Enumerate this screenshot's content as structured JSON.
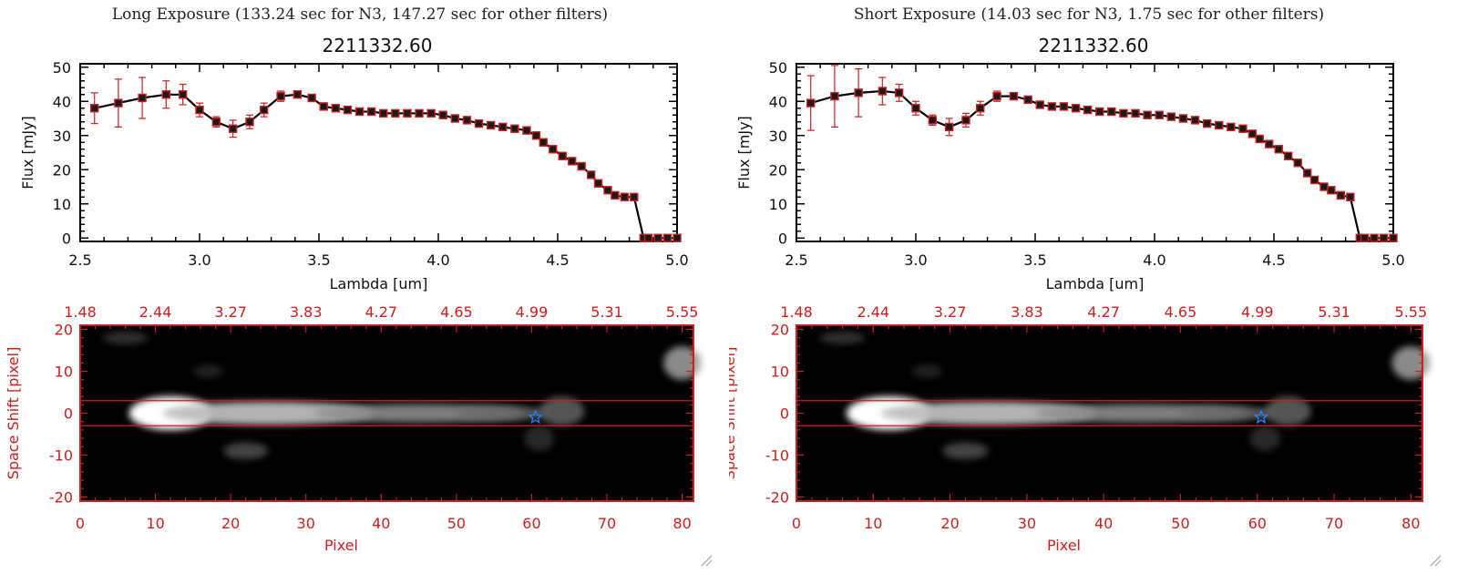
{
  "panels": [
    {
      "caption": "Long Exposure (133.24 sec for N3, 147.27 sec for other filters)",
      "title": "2211332.60",
      "spectrum": {
        "xlabel": "Lambda [um]",
        "ylabel": "Flux [mJy]",
        "xticks": [
          "2.5",
          "3.0",
          "3.5",
          "4.0",
          "4.5",
          "5.0"
        ],
        "yticks": [
          "0",
          "10",
          "20",
          "30",
          "40",
          "50"
        ],
        "xlim": [
          2.5,
          5.0
        ],
        "ylim": [
          -1,
          51
        ]
      },
      "image": {
        "xlabel": "Pixel",
        "ylabel": "Space Shift [pixel]",
        "xticks": [
          "0",
          "10",
          "20",
          "30",
          "40",
          "50",
          "60",
          "70",
          "80"
        ],
        "yticks": [
          "20",
          "10",
          "0",
          "-10",
          "-20"
        ],
        "top_ticks": [
          "1.48",
          "2.44",
          "3.27",
          "3.83",
          "4.27",
          "4.65",
          "4.99",
          "5.31",
          "5.55"
        ]
      }
    },
    {
      "caption": "Short Exposure (14.03 sec for N3, 1.75 sec for other filters)",
      "title": "2211332.60",
      "spectrum": {
        "xlabel": "Lambda [um]",
        "ylabel": "Flux [mJy]",
        "xticks": [
          "2.5",
          "3.0",
          "3.5",
          "4.0",
          "4.5",
          "5.0"
        ],
        "yticks": [
          "0",
          "10",
          "20",
          "30",
          "40",
          "50"
        ],
        "xlim": [
          2.5,
          5.0
        ],
        "ylim": [
          -1,
          51
        ]
      },
      "image": {
        "xlabel": "Pixel",
        "ylabel": "Space Shift [pixel]",
        "xticks": [
          "0",
          "10",
          "20",
          "30",
          "40",
          "50",
          "60",
          "70",
          "80"
        ],
        "yticks": [
          "20",
          "10",
          "0",
          "-10",
          "-20"
        ],
        "top_ticks": [
          "1.48",
          "2.44",
          "3.27",
          "3.83",
          "4.27",
          "4.65",
          "4.99",
          "5.31",
          "5.55"
        ]
      }
    }
  ],
  "colors": {
    "axis_red": "#cc1f1f",
    "marker_red": "#cc1f1f",
    "line": "#000000",
    "star": "#2a7fff"
  },
  "chart_data": [
    {
      "type": "line",
      "title": "2211332.60",
      "xlabel": "Lambda [um]",
      "ylabel": "Flux [mJy]",
      "xlim": [
        2.5,
        5.0
      ],
      "ylim": [
        -1,
        51
      ],
      "series": [
        {
          "x": [
            2.56,
            2.66,
            2.76,
            2.86,
            2.93,
            3.0,
            3.07,
            3.14,
            3.21,
            3.27,
            3.34,
            3.41,
            3.47,
            3.52,
            3.57,
            3.62,
            3.67,
            3.72,
            3.77,
            3.82,
            3.87,
            3.92,
            3.97,
            4.02,
            4.07,
            4.12,
            4.17,
            4.22,
            4.27,
            4.32,
            4.37,
            4.41,
            4.44,
            4.48,
            4.52,
            4.56,
            4.6,
            4.64,
            4.67,
            4.71,
            4.74,
            4.78,
            4.82,
            4.86,
            4.88,
            4.92,
            4.96,
            5.0
          ],
          "y": [
            38,
            39.5,
            41,
            42,
            42,
            37.5,
            34,
            32,
            34,
            37.5,
            41.5,
            42,
            41,
            38.5,
            38,
            37.5,
            37,
            37,
            36.5,
            36.5,
            36.5,
            36.5,
            36.5,
            36,
            35,
            34.5,
            33.5,
            33,
            32.5,
            32,
            31.5,
            30,
            28,
            26,
            24,
            22.5,
            21,
            18.5,
            16,
            14,
            12.5,
            12,
            12,
            0,
            0,
            0,
            0,
            0
          ],
          "yerr": [
            4.5,
            7,
            6,
            4,
            3,
            2,
            1.5,
            2.5,
            2,
            2,
            1.5,
            1,
            1,
            1,
            0.8,
            0.8,
            0.8,
            0.8,
            0.8,
            0.8,
            0.8,
            0.8,
            0.8,
            0.8,
            0.8,
            0.8,
            0.8,
            0.8,
            0.8,
            0.8,
            0.8,
            0.8,
            0.8,
            0.8,
            0.8,
            0.8,
            0.8,
            0.8,
            0.8,
            0.8,
            0.8,
            0.8,
            0.8,
            0.5,
            0.5,
            0.5,
            0.5,
            0.5
          ]
        }
      ]
    },
    {
      "type": "line",
      "title": "2211332.60",
      "xlabel": "Lambda [um]",
      "ylabel": "Flux [mJy]",
      "xlim": [
        2.5,
        5.0
      ],
      "ylim": [
        -1,
        51
      ],
      "series": [
        {
          "x": [
            2.56,
            2.66,
            2.76,
            2.86,
            2.93,
            3.0,
            3.07,
            3.14,
            3.21,
            3.27,
            3.34,
            3.41,
            3.47,
            3.52,
            3.57,
            3.62,
            3.67,
            3.72,
            3.77,
            3.82,
            3.87,
            3.92,
            3.97,
            4.02,
            4.07,
            4.12,
            4.17,
            4.22,
            4.27,
            4.32,
            4.37,
            4.41,
            4.44,
            4.48,
            4.52,
            4.56,
            4.6,
            4.64,
            4.67,
            4.71,
            4.74,
            4.78,
            4.82,
            4.86,
            4.88,
            4.92,
            4.96,
            5.0
          ],
          "y": [
            39.5,
            41.5,
            42.5,
            43,
            42.5,
            38,
            34.5,
            32.5,
            34.5,
            38,
            41.5,
            41.5,
            40.5,
            39,
            38.5,
            38.5,
            38,
            37.5,
            37,
            37,
            36.5,
            36.5,
            36,
            36,
            35.5,
            35,
            34.5,
            33.5,
            33,
            32.5,
            32,
            30.5,
            29,
            27.5,
            26,
            24,
            22,
            19,
            17,
            15,
            14,
            12.5,
            12,
            0,
            0,
            0,
            0,
            0
          ],
          "yerr": [
            8,
            9,
            7,
            4,
            2.5,
            2,
            1.5,
            2.5,
            2,
            2,
            1.5,
            1,
            1,
            1,
            0.8,
            0.8,
            0.8,
            0.8,
            0.8,
            0.8,
            0.8,
            0.8,
            0.8,
            0.8,
            0.8,
            0.8,
            0.8,
            0.8,
            0.8,
            0.8,
            0.8,
            0.8,
            0.8,
            0.8,
            0.8,
            0.8,
            0.8,
            0.8,
            0.8,
            0.8,
            0.8,
            0.8,
            0.8,
            0.5,
            0.5,
            0.5,
            0.5,
            0.5
          ]
        }
      ]
    }
  ]
}
